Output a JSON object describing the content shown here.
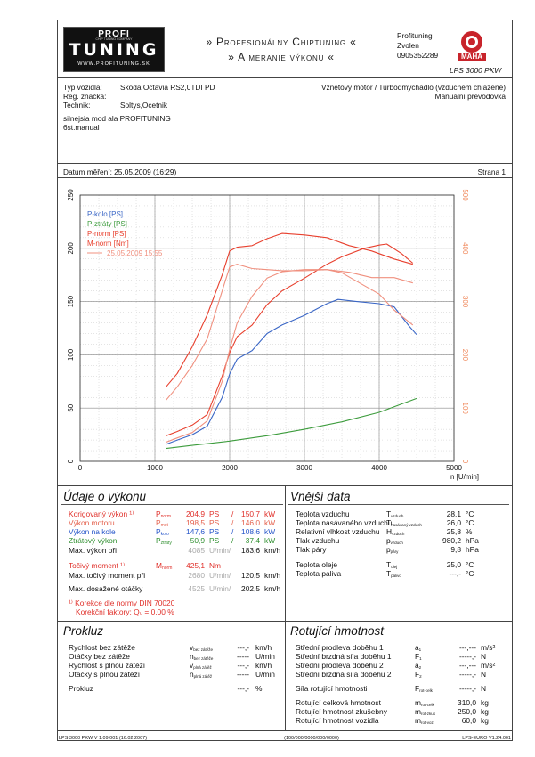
{
  "header": {
    "logo_top": "PROFI",
    "logo_main": "TUNING",
    "logo_small": "CHIP TUNING COMPANY",
    "logo_url": "WWW.PROFITUNING.SK",
    "banner_line1": "» Profesionálny Chiptuning «",
    "banner_line2": "» A meranie výkonu «",
    "company": "Profituning",
    "city": "Zvolen",
    "phone": "0905352289",
    "brand_logo": "MAHA",
    "model": "LPS 3000 PKW"
  },
  "vehicle": {
    "type_label": "Typ vozidla:",
    "type_value": "Skoda Octavia RS2,0TDI PD",
    "reg_label": "Reg. značka:",
    "reg_value": "",
    "tech_label": "Technik:",
    "tech_value": "Soltys,Ocetnik",
    "engine_desc": "Vznětový motor / Turbodmychadlo (vzduchem chlazené)",
    "gearbox": "Manuální převodovka",
    "note_line1": "silnejsia mod ala PROFITUNING",
    "note_line2": "6st.manual"
  },
  "meta": {
    "date_label": "Datum měření: 25.05.2009 (16:29)",
    "page_label": "Strana 1"
  },
  "chart_data": {
    "type": "line",
    "xlabel": "n [U/min]",
    "xlim": [
      0,
      5000
    ],
    "ylim_left": [
      0,
      250
    ],
    "ylim_right": [
      0,
      500
    ],
    "x_ticks": [
      "0",
      "1000",
      "2000",
      "3000",
      "4000",
      "5000"
    ],
    "y_ticks_left": [
      "0",
      "50",
      "100",
      "150",
      "200",
      "250"
    ],
    "y_ticks_right": [
      "0",
      "100",
      "200",
      "300",
      "400",
      "500"
    ],
    "legend": [
      "P-kolo [PS]",
      "P-ztráty [PS]",
      "P-norm [PS]",
      "M-norm [Nm]",
      "25.05.2009 15:55"
    ],
    "grid": true,
    "series": [
      {
        "name": "P-kolo [PS]",
        "axis": "left",
        "color": "#3a66c6",
        "x": [
          1150,
          1300,
          1500,
          1700,
          1900,
          2000,
          2100,
          2300,
          2500,
          2700,
          3000,
          3300,
          3450,
          3700,
          4000,
          4200,
          4400,
          4500
        ],
        "y": [
          16,
          20,
          25,
          33,
          60,
          82,
          96,
          104,
          120,
          128,
          137,
          148,
          152,
          150,
          148,
          145,
          127,
          119
        ]
      },
      {
        "name": "P-ztráty [PS]",
        "axis": "left",
        "color": "#3d9c3d",
        "x": [
          1150,
          1500,
          2000,
          2500,
          3000,
          3500,
          4000,
          4500
        ],
        "y": [
          12,
          15,
          19,
          24,
          30,
          37,
          46,
          59
        ]
      },
      {
        "name": "P-norm [PS]",
        "axis": "left",
        "color": "#e8402e",
        "x": [
          1150,
          1300,
          1500,
          1700,
          1900,
          2000,
          2100,
          2300,
          2500,
          2700,
          3000,
          3300,
          3500,
          3800,
          4000,
          4100,
          4300,
          4450
        ],
        "y": [
          24,
          28,
          34,
          44,
          80,
          102,
          117,
          128,
          147,
          160,
          172,
          185,
          192,
          200,
          203,
          204,
          195,
          186
        ]
      },
      {
        "name": "M-norm [Nm]",
        "axis": "right",
        "color": "#e8402e",
        "x": [
          1150,
          1300,
          1500,
          1700,
          1900,
          2000,
          2100,
          2300,
          2500,
          2700,
          3000,
          3300,
          3600,
          3900,
          4200,
          4450
        ],
        "y": [
          140,
          165,
          215,
          275,
          350,
          395,
          402,
          405,
          418,
          428,
          425,
          420,
          405,
          395,
          380,
          370
        ]
      },
      {
        "name": "25.05.2009 15:55",
        "axis": "left",
        "color": "#f0907f",
        "x": [
          1150,
          1300,
          1500,
          1700,
          1900,
          2000,
          2100,
          2300,
          2500,
          2700,
          3000,
          3300,
          3500,
          3800,
          4000,
          4200,
          4450
        ],
        "y": [
          18,
          22,
          27,
          38,
          75,
          105,
          130,
          155,
          172,
          178,
          180,
          180,
          177,
          165,
          157,
          142,
          128
        ]
      },
      {
        "name": "25.05.2009 15:55 M",
        "axis": "right",
        "color": "#f0907f",
        "x": [
          1150,
          1300,
          1500,
          1700,
          1900,
          2000,
          2100,
          2300,
          2500,
          2700,
          3000,
          3300,
          3600,
          3900,
          4200,
          4450
        ],
        "y": [
          115,
          140,
          180,
          230,
          320,
          365,
          370,
          362,
          360,
          358,
          358,
          360,
          355,
          345,
          345,
          335
        ]
      }
    ]
  },
  "vykon": {
    "title": "Údaje o výkonu",
    "kor_label": "Korigovaný výkon ¹⁾",
    "kor_sym": "P",
    "kor_sub": "norm",
    "kor_v1": "204,9",
    "kor_u1": "PS",
    "kor_v2": "150,7",
    "kor_u2": "kW",
    "mot_label": "Výkon motoru",
    "mot_sym": "P",
    "mot_sub": "mot",
    "mot_v1": "198,5",
    "mot_u1": "PS",
    "mot_v2": "146,0",
    "mot_u2": "kW",
    "kolo_label": "Výkon na kole",
    "kolo_sym": "P",
    "kolo_sub": "kolo",
    "kolo_v1": "147,6",
    "kolo_u1": "PS",
    "kolo_v2": "108,6",
    "kolo_u2": "kW",
    "ztr_label": "Ztrátový výkon",
    "ztr_sym": "P",
    "ztr_sub": "ztráty",
    "ztr_v1": "50,9",
    "ztr_u1": "PS",
    "ztr_v2": "37,4",
    "ztr_u2": "kW",
    "max_label": "Max. výkon při",
    "max_v1": "4085",
    "max_u1": "U/min/",
    "max_v2": "183,6",
    "max_u2": "km/h",
    "moment_label": "Točivý moment ¹⁾",
    "moment_sym": "M",
    "moment_sub": "norm",
    "moment_v": "425,1",
    "moment_u": "Nm",
    "maxm_label": "Max. točivý moment při",
    "maxm_v1": "2680",
    "maxm_u1": "U/min/",
    "maxm_v2": "120,5",
    "maxm_u2": "km/h",
    "maxo_label": "Max. dosažené otáčky",
    "maxo_v1": "4525",
    "maxo_u1": "U/min/",
    "maxo_v2": "202,5",
    "maxo_u2": "km/h",
    "korekce": "¹⁾ Korekce dle normy DIN 70020",
    "faktor": "Korekční faktory: Q",
    "faktor_sub": "V",
    "faktor_val": "= 0,00 %"
  },
  "vnejsi": {
    "title": "Vnější data",
    "rows": [
      {
        "label": "Teplota vzduchu",
        "sym": "T",
        "sub": "vzduch",
        "val": "28,1",
        "unit": "°C"
      },
      {
        "label": "Teplota nasávaného vzduchu",
        "sym": "T",
        "sub": "nasávaný vzduch",
        "val": "26,0",
        "unit": "°C"
      },
      {
        "label": "Relativní vlhkost vzduchu",
        "sym": "H",
        "sub": "vzduch",
        "val": "25,8",
        "unit": "%"
      },
      {
        "label": "Tlak vzduchu",
        "sym": "p",
        "sub": "vzduch",
        "val": "980,2",
        "unit": "hPa"
      },
      {
        "label": "Tlak páry",
        "sym": "p",
        "sub": "páry",
        "val": "9,8",
        "unit": "hPa"
      },
      {
        "label": "Teplota oleje",
        "sym": "T",
        "sub": "olej",
        "val": "25,0",
        "unit": "°C"
      },
      {
        "label": "Teplota paliva",
        "sym": "T",
        "sub": "palivo",
        "val": "---,-",
        "unit": "°C"
      }
    ]
  },
  "prokluz": {
    "title": "Prokluz",
    "rows": [
      {
        "label": "Rychlost bez zátěže",
        "sym": "v",
        "sub": "bez zátěže",
        "val": "---,-",
        "unit": "km/h"
      },
      {
        "label": "Otáčky bez zátěže",
        "sym": "n",
        "sub": "bez zátěže",
        "val": "-----",
        "unit": "U/min"
      },
      {
        "label": "Rychlost s plnou zátěží",
        "sym": "v",
        "sub": "plná zátěž",
        "val": "---,-",
        "unit": "km/h"
      },
      {
        "label": "Otáčky s plnou zátěží",
        "sym": "n",
        "sub": "plná zátěž",
        "val": "-----",
        "unit": "U/min"
      },
      {
        "label": "Prokluz",
        "sym": "",
        "sub": "",
        "val": "---,-",
        "unit": "%"
      }
    ]
  },
  "rotujici": {
    "title": "Rotující hmotnost",
    "rows": [
      {
        "label": "Střední prodleva doběhu 1",
        "sym": "a",
        "sub": "1",
        "val": "---,---",
        "unit": "m/s²"
      },
      {
        "label": "Střední brzdná síla doběhu 1",
        "sym": "F",
        "sub": "1",
        "val": "-----,-",
        "unit": "N"
      },
      {
        "label": "Střední prodleva doběhu 2",
        "sym": "a",
        "sub": "2",
        "val": "---,---",
        "unit": "m/s²"
      },
      {
        "label": "Střední brzdná síla doběhu 2",
        "sym": "F",
        "sub": "2",
        "val": "-----,-",
        "unit": "N"
      },
      {
        "label": "Síla rotující hmotnosti",
        "sym": "F",
        "sub": "rot-celk",
        "val": "-----,-",
        "unit": "N"
      },
      {
        "label": "Rotující celková hmotnost",
        "sym": "m",
        "sub": "rot-celk",
        "val": "310,0",
        "unit": "kg"
      },
      {
        "label": "Rotující hmotnost zkušebny",
        "sym": "m",
        "sub": "rot-zkuš",
        "val": "250,0",
        "unit": "kg"
      },
      {
        "label": "Rotující hmotnost vozidla",
        "sym": "m",
        "sub": "rot-voz",
        "val": "60,0",
        "unit": "kg"
      }
    ]
  },
  "footer": {
    "left": "LPS 3000 PKW V 1.09.001 (16.02.2007)",
    "center": "(100/000/0000/000/0000)",
    "right": "LPS-EURO V1.24.001"
  }
}
